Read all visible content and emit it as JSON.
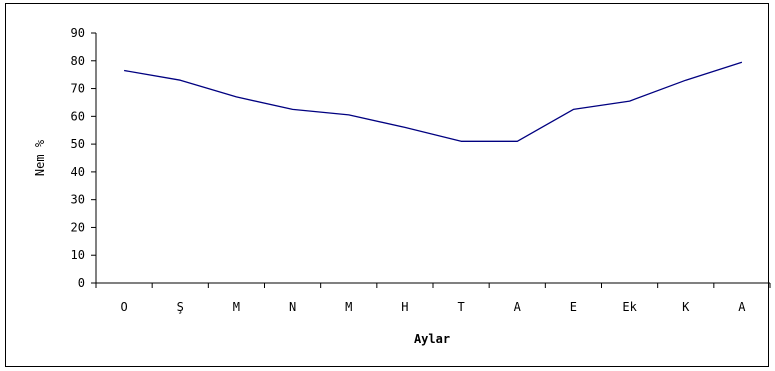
{
  "chart_data": {
    "type": "line",
    "categories": [
      "O",
      "Ş",
      "M",
      "N",
      "M",
      "H",
      "T",
      "A",
      "E",
      "Ek",
      "K",
      "A"
    ],
    "series": [
      {
        "values": [
          76.5,
          73,
          67,
          62.5,
          60.5,
          56,
          51,
          51,
          62.5,
          65.5,
          73,
          79.5
        ],
        "color": "#000080"
      }
    ],
    "title": "",
    "xlabel": "Aylar",
    "ylabel": "Nem %",
    "ylim": [
      0,
      90
    ],
    "yticks": [
      0,
      10,
      20,
      30,
      40,
      50,
      60,
      70,
      80,
      90
    ],
    "grid": false,
    "legend": false,
    "axis_color": "#000000",
    "line_color": "#000080"
  }
}
